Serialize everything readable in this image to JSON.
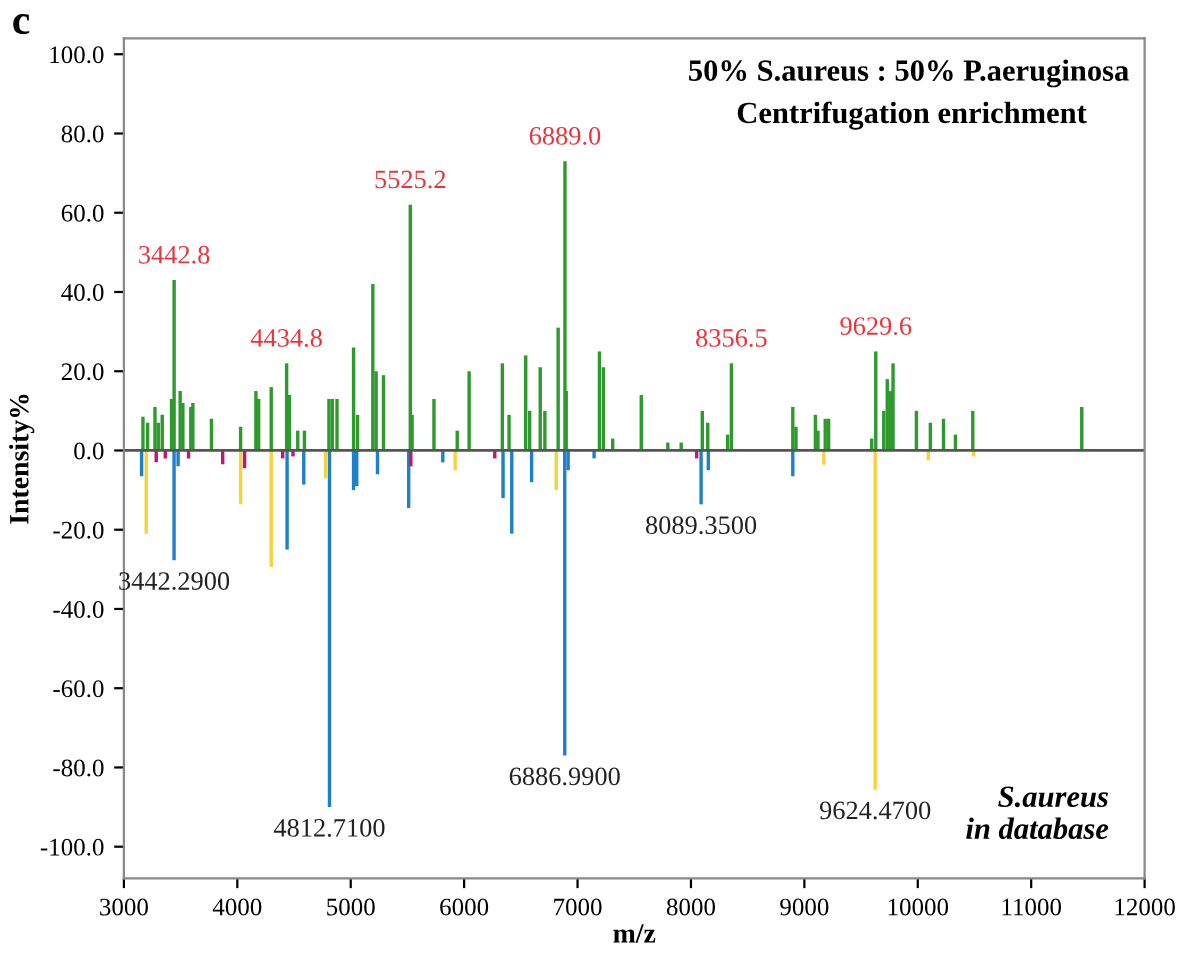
{
  "chart_data": {
    "type": "bar",
    "title": "50% S.aureus : 50% P.aeruginosa",
    "subtitle": "Centrifugation enrichment",
    "xlabel": "m/z",
    "ylabel": "Intensity%",
    "xlim": [
      3000,
      12000
    ],
    "ylim": [
      -108,
      104
    ],
    "xticks": [
      3000,
      4000,
      5000,
      6000,
      7000,
      8000,
      9000,
      10000,
      11000,
      12000
    ],
    "yticks": [
      {
        "value": -100,
        "label": "-100.0"
      },
      {
        "value": -80,
        "label": "-80.0"
      },
      {
        "value": -60,
        "label": "-60.0"
      },
      {
        "value": -40,
        "label": "-40.0"
      },
      {
        "value": -20,
        "label": "-20.0"
      },
      {
        "value": 0,
        "label": "0.0"
      },
      {
        "value": 20,
        "label": "20.0"
      },
      {
        "value": 40,
        "label": "40.0"
      },
      {
        "value": 60,
        "label": "60.0"
      },
      {
        "value": 80,
        "label": "80.0"
      },
      {
        "value": 100,
        "label": "100.0"
      }
    ],
    "series": [
      {
        "color": "#2e9a2e",
        "x": [
          3168,
          3209,
          3274,
          3303,
          3338,
          3420,
          3442.8,
          3496,
          3520,
          3590,
          3608,
          3772,
          4029,
          4164,
          4188,
          4299,
          4434.8,
          4460,
          4533,
          4592,
          4808,
          4838,
          4879,
          5025,
          5060,
          5195,
          5224,
          5289,
          5525.2,
          5541,
          5734,
          5939,
          6044,
          6337,
          6396,
          6543,
          6578,
          6671,
          6712,
          6829,
          6889.0,
          6900,
          7193,
          7228,
          7310,
          7562,
          7796,
          7914,
          8100,
          8148,
          8323,
          8356.5,
          8898,
          8926,
          9097,
          9120,
          9184,
          9214,
          9594,
          9629.6,
          9700,
          9731,
          9760,
          9782,
          9988,
          10111,
          10227,
          10332,
          10485,
          11446
        ],
        "values": [
          8.5,
          7,
          11,
          7,
          9,
          13,
          43,
          15,
          12,
          11,
          12,
          8,
          6,
          15,
          13,
          16,
          22,
          14,
          5,
          5,
          13,
          13,
          13,
          26,
          9,
          42,
          20,
          19,
          62,
          9,
          13,
          5,
          20,
          22,
          9,
          24,
          10,
          21,
          10,
          31,
          73,
          15,
          25,
          21,
          3,
          14,
          2,
          2,
          10,
          7,
          4,
          22,
          11,
          6,
          9,
          5,
          8,
          8,
          3,
          25,
          10,
          18,
          15,
          22,
          10,
          7,
          8,
          4,
          10,
          11
        ]
      },
      {
        "color": "#1f7fc8",
        "x": [
          3156,
          3442.29,
          3478,
          4439,
          4586,
          4812.71,
          5025,
          5053,
          5236,
          5511,
          5812,
          6343,
          6420,
          6595,
          6886.99,
          6917,
          7146,
          8089.35,
          8153,
          8898
        ],
        "values": [
          -6.5,
          -27.7,
          -4,
          -25,
          -8.6,
          -90,
          -10,
          -9,
          -6,
          -14.5,
          -3,
          -12,
          -21,
          -8,
          -77,
          -5,
          -2,
          -13.6,
          -5,
          -6.5
        ]
      },
      {
        "color": "#f5d33c",
        "x": [
          3197,
          4029,
          4299,
          4779,
          5921,
          6812,
          9172,
          9624.47,
          10093,
          10493
        ],
        "values": [
          -21,
          -13.6,
          -29.4,
          -7,
          -5,
          -10,
          -3.6,
          -85.6,
          -2.5,
          -1.5
        ]
      },
      {
        "color": "#c0186c",
        "x": [
          3285,
          3365,
          3570,
          3871,
          4064,
          4400,
          4491,
          5530,
          6270,
          8050
        ],
        "values": [
          -3,
          -2,
          -2,
          -3.5,
          -4.5,
          -2,
          -1.5,
          -4,
          -2,
          -2
        ]
      }
    ],
    "annotations": [
      "c",
      "S.aureus\nin database",
      {
        "text": "3442.8",
        "x": 3442.8,
        "y": 43
      },
      {
        "text": "4434.8",
        "x": 4434.8,
        "y": 22
      },
      {
        "text": "5525.2",
        "x": 5525.2,
        "y": 62
      },
      {
        "text": "6889.0",
        "x": 6889.0,
        "y": 73
      },
      {
        "text": "8356.5",
        "x": 8356.5,
        "y": 22
      },
      {
        "text": "9629.6",
        "x": 9629.6,
        "y": 25
      },
      {
        "text": "3442.2900",
        "x": 3442.29,
        "y": -27.7
      },
      {
        "text": "4812.7100",
        "x": 4812.71,
        "y": -90
      },
      {
        "text": "6886.9900",
        "x": 6886.99,
        "y": -77
      },
      {
        "text": "8089.3500",
        "x": 8089.35,
        "y": -13.6
      },
      {
        "text": "9624.4700",
        "x": 9624.47,
        "y": -85.6
      }
    ]
  }
}
